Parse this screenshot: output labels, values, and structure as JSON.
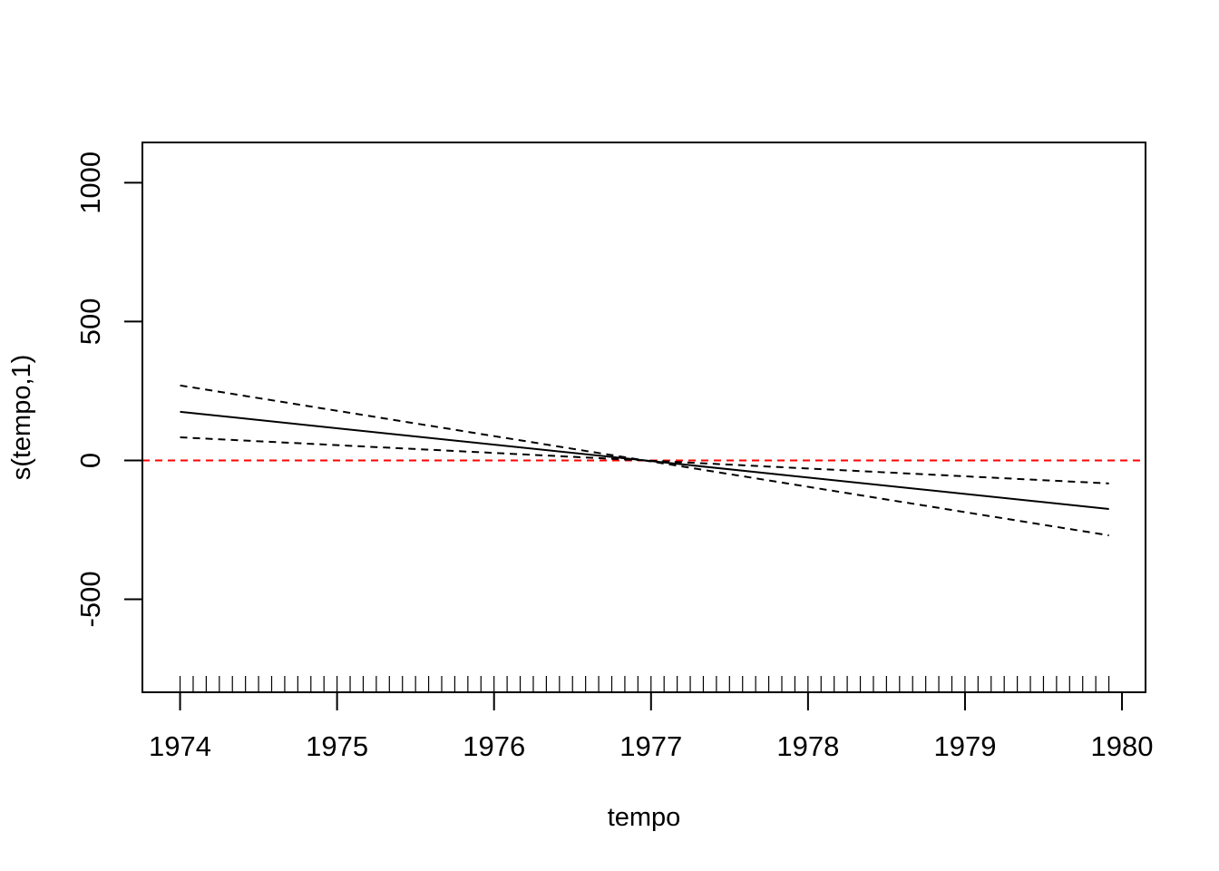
{
  "chart_data": {
    "type": "line",
    "title": "",
    "xlabel": "tempo",
    "ylabel": "s(tempo,1)",
    "xlim": [
      1973.76,
      1980.15
    ],
    "ylim": [
      -835,
      1145
    ],
    "xticks": [
      1974,
      1975,
      1976,
      1977,
      1978,
      1979,
      1980
    ],
    "xtick_labels": [
      "1974",
      "1975",
      "1976",
      "1977",
      "1978",
      "1979",
      "1980"
    ],
    "yticks": [
      -500,
      0,
      500,
      1000
    ],
    "ytick_labels": [
      "-500",
      "0",
      "500",
      "1000"
    ],
    "grid": false,
    "legend": false,
    "reference_line": {
      "y": 0,
      "color": "#ff0000",
      "style": "dashed"
    },
    "series": [
      {
        "x": [
          1974,
          1979.917
        ],
        "y": [
          175,
          -175
        ],
        "style": "solid",
        "color": "#000000"
      },
      {
        "x": [
          1974,
          1979.917
        ],
        "y": [
          270,
          -270
        ],
        "style": "dashed",
        "color": "#000000"
      },
      {
        "x": [
          1974,
          1979.917
        ],
        "y": [
          83,
          -83
        ],
        "style": "dashed",
        "color": "#000000"
      }
    ],
    "rug": {
      "start": 1974,
      "end": 1979.917,
      "step": 0.08333,
      "color": "#000000"
    }
  }
}
